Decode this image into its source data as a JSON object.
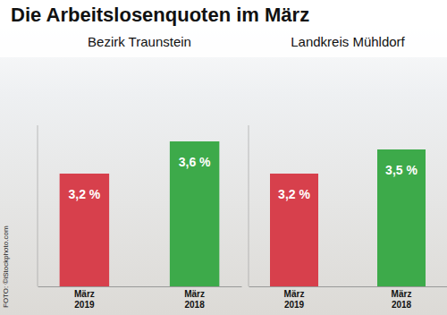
{
  "title": "Die Arbeitslosenquoten im März",
  "credit": "FOTO: ©iStockphoto.com",
  "chart_data": [
    {
      "type": "bar",
      "title": "Bezirk Traunstein",
      "categories": [
        "März 2019",
        "März 2018"
      ],
      "values": [
        3.2,
        3.6
      ],
      "value_labels": [
        "3,2 %",
        "3,6 %"
      ],
      "colors": [
        "#d7404c",
        "#3daa4a"
      ],
      "ylim": [
        1.8,
        3.8
      ],
      "data_labels": true,
      "tick_labels": "x"
    },
    {
      "type": "bar",
      "title": "Landkreis Mühldorf",
      "categories": [
        "März 2019",
        "März 2018"
      ],
      "values": [
        3.2,
        3.5
      ],
      "value_labels": [
        "3,2 %",
        "3,5 %"
      ],
      "colors": [
        "#d7404c",
        "#3daa4a"
      ],
      "ylim": [
        1.8,
        3.8
      ],
      "data_labels": true,
      "tick_labels": "x"
    }
  ]
}
